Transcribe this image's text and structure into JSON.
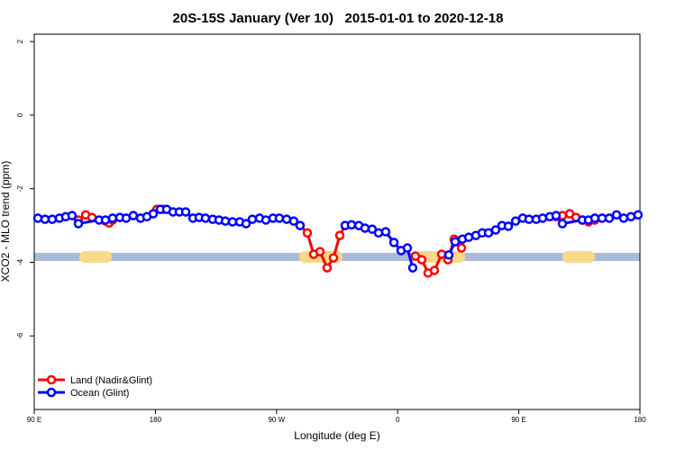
{
  "chart_data": {
    "type": "line",
    "title": "20S-15S January (Ver 10)   2015-01-01 to 2020-12-18",
    "x_label": "Longitude (deg E)",
    "y_label": "XCO2 - MLO trend (ppm)",
    "xlim": [
      90,
      540
    ],
    "xticks": [
      {
        "value": 90,
        "label": "90 E"
      },
      {
        "value": 180,
        "label": "180"
      },
      {
        "value": 270,
        "label": "90 W"
      },
      {
        "value": 360,
        "label": "0"
      },
      {
        "value": 450,
        "label": "90 E"
      },
      {
        "value": 540,
        "label": "180"
      }
    ],
    "ylim": [
      -8,
      2.2
    ],
    "yticks": [
      2,
      0,
      -2,
      -4,
      -6
    ],
    "legend": "bottom-left",
    "series": [
      {
        "name": "Land (Nadir&Glint)",
        "color": "#ff0000",
        "x": [
          122.8,
          128.2,
          132.9,
          142.9,
          145.6,
          148.2,
          null,
          181.1,
          185.8,
          null,
          287.5,
          292.9,
          297.6,
          302.3,
          307.6,
          312.3,
          317.0,
          321.0,
          null,
          373.2,
          377.9,
          382.6,
          387.3,
          392.7,
          397.4,
          402.0,
          407.4,
          null,
          477.7,
          482.4,
          487.8,
          492.5,
          497.2,
          501.8,
          506.5
        ],
        "values": [
          -2.85,
          -2.71,
          -2.78,
          -2.88,
          -2.93,
          -2.85,
          null,
          -2.56,
          -2.56,
          null,
          -3.0,
          -3.2,
          -3.78,
          -3.71,
          -4.15,
          -3.88,
          -3.27,
          -3.0,
          null,
          -3.83,
          -3.93,
          -4.29,
          -4.22,
          -3.78,
          -3.93,
          -3.37,
          -3.61,
          null,
          -2.76,
          -2.73,
          -2.68,
          -2.78,
          -2.85,
          -2.9,
          -2.85
        ]
      },
      {
        "name": "Ocean (Glint)",
        "color": "#0000ff",
        "x": [
          92.7,
          98.0,
          103.4,
          108.7,
          113.4,
          118.1,
          122.8,
          138.2,
          142.9,
          148.2,
          153.6,
          158.3,
          163.6,
          169.0,
          173.7,
          178.4,
          183.7,
          188.4,
          193.1,
          197.8,
          202.5,
          207.9,
          212.5,
          217.2,
          222.6,
          227.3,
          232.0,
          237.3,
          242.7,
          247.4,
          252.0,
          257.4,
          262.1,
          267.4,
          272.1,
          277.5,
          282.8,
          287.5,
          null,
          321.0,
          325.7,
          331.1,
          335.7,
          341.1,
          345.8,
          351.1,
          357.2,
          362.5,
          367.2,
          371.2,
          null,
          398.0,
          402.7,
          408.1,
          412.8,
          418.1,
          422.8,
          427.5,
          432.8,
          437.5,
          442.2,
          447.6,
          452.9,
          457.6,
          463.0,
          467.7,
          473.0,
          477.7,
          482.4,
          497.2,
          501.8,
          506.5,
          511.9,
          517.2,
          522.6,
          527.9,
          533.3,
          538.6
        ],
        "values": [
          -2.8,
          -2.83,
          -2.83,
          -2.8,
          -2.76,
          -2.73,
          -2.95,
          -2.85,
          -2.85,
          -2.8,
          -2.78,
          -2.8,
          -2.73,
          -2.8,
          -2.76,
          -2.68,
          -2.56,
          -2.56,
          -2.63,
          -2.63,
          -2.63,
          -2.8,
          -2.78,
          -2.8,
          -2.83,
          -2.85,
          -2.88,
          -2.9,
          -2.9,
          -2.95,
          -2.83,
          -2.8,
          -2.85,
          -2.8,
          -2.8,
          -2.83,
          -2.88,
          -3.0,
          null,
          -3.0,
          -2.98,
          -3.0,
          -3.07,
          -3.1,
          -3.2,
          -3.17,
          -3.46,
          -3.68,
          -3.61,
          -4.15,
          null,
          -3.8,
          -3.44,
          -3.37,
          -3.32,
          -3.27,
          -3.2,
          -3.2,
          -3.12,
          -3.0,
          -3.02,
          -2.88,
          -2.8,
          -2.83,
          -2.83,
          -2.8,
          -2.76,
          -2.73,
          -2.95,
          -2.85,
          -2.85,
          -2.8,
          -2.8,
          -2.8,
          -2.71,
          -2.8,
          -2.76,
          -2.71
        ]
      }
    ]
  }
}
